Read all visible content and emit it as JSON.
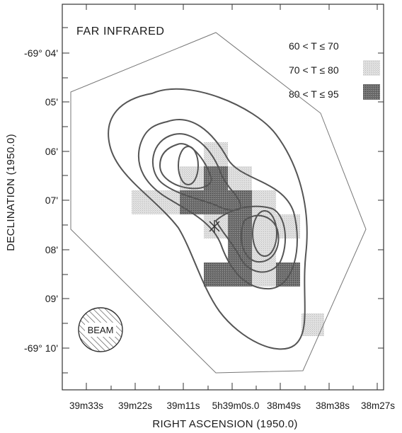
{
  "title": "FAR INFRARED",
  "y_axis": {
    "title": "DECLINATION (1950.0)",
    "ticks": [
      "-69° 04'",
      "05'",
      "06'",
      "07'",
      "08'",
      "09'",
      "-69° 10'"
    ]
  },
  "x_axis": {
    "title": "RIGHT ASCENSION (1950.0)",
    "ticks": [
      "39m33s",
      "39m22s",
      "39m11s",
      "5h39m0s.0",
      "38m49s",
      "38m38s",
      "38m27s"
    ]
  },
  "legend": [
    {
      "label": "60 < T ≤ 70",
      "shade": "none"
    },
    {
      "label": "70 < T ≤ 80",
      "shade": "light"
    },
    {
      "label": "80 < T ≤ 95",
      "shade": "dark"
    }
  ],
  "beam_label": "BEAM",
  "colors": {
    "light_shade": "#d8d8d8",
    "dark_shade": "#6a6a6a",
    "contour": "#555555"
  }
}
